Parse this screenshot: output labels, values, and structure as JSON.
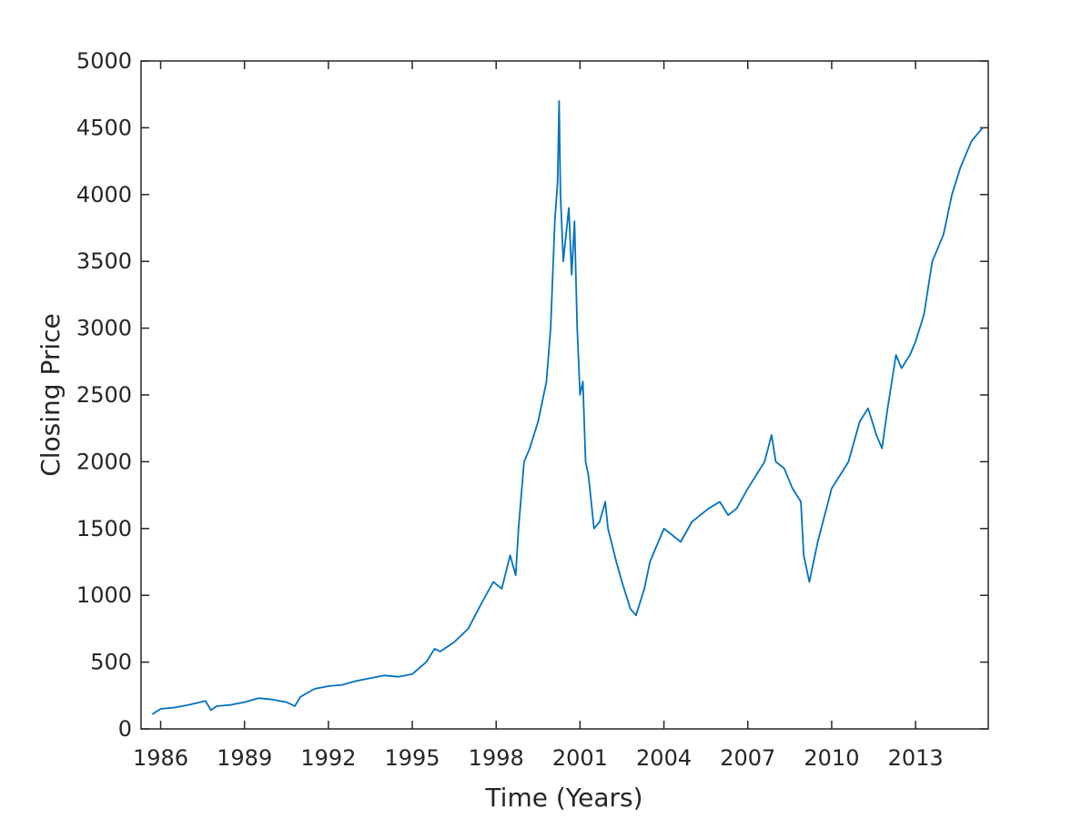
{
  "chart_data": {
    "type": "line",
    "title": "",
    "xlabel": "Time (Years)",
    "ylabel": "Closing Price",
    "xlim": [
      1985.3,
      2015.6
    ],
    "ylim": [
      0,
      5000
    ],
    "x_ticks": [
      1986,
      1989,
      1992,
      1995,
      1998,
      2001,
      2004,
      2007,
      2010,
      2013
    ],
    "y_ticks": [
      0,
      500,
      1000,
      1500,
      2000,
      2500,
      3000,
      3500,
      4000,
      4500,
      5000
    ],
    "grid": false,
    "line_color": "#0072BD",
    "series": [
      {
        "x": [
          1985.7,
          1986.0,
          1986.5,
          1987.0,
          1987.6,
          1987.8,
          1988.0,
          1988.5,
          1989.0,
          1989.5,
          1990.0,
          1990.5,
          1990.8,
          1991.0,
          1991.5,
          1992.0,
          1992.5,
          1993.0,
          1993.5,
          1994.0,
          1994.5,
          1995.0,
          1995.5,
          1995.8,
          1996.0,
          1996.5,
          1997.0,
          1997.5,
          1997.9,
          1998.2,
          1998.5,
          1998.7,
          1998.8,
          1999.0,
          1999.2,
          1999.5,
          1999.8,
          1999.95,
          2000.1,
          2000.2,
          2000.25,
          2000.3,
          2000.4,
          2000.5,
          2000.6,
          2000.7,
          2000.8,
          2000.9,
          2001.0,
          2001.1,
          2001.2,
          2001.3,
          2001.5,
          2001.7,
          2001.9,
          2002.0,
          2002.3,
          2002.5,
          2002.8,
          2003.0,
          2003.3,
          2003.5,
          2003.8,
          2004.0,
          2004.3,
          2004.6,
          2005.0,
          2005.3,
          2005.6,
          2006.0,
          2006.3,
          2006.6,
          2007.0,
          2007.3,
          2007.6,
          2007.85,
          2008.0,
          2008.3,
          2008.6,
          2008.9,
          2009.0,
          2009.2,
          2009.5,
          2010.0,
          2010.3,
          2010.6,
          2011.0,
          2011.3,
          2011.6,
          2011.8,
          2012.0,
          2012.3,
          2012.5,
          2012.8,
          2013.0,
          2013.3,
          2013.6,
          2014.0,
          2014.3,
          2014.6,
          2014.8,
          2015.0,
          2015.2,
          2015.4
        ],
        "y": [
          110,
          150,
          160,
          180,
          210,
          140,
          170,
          180,
          200,
          230,
          220,
          200,
          170,
          240,
          300,
          320,
          330,
          360,
          380,
          400,
          390,
          410,
          500,
          600,
          580,
          650,
          750,
          950,
          1100,
          1050,
          1300,
          1150,
          1500,
          2000,
          2100,
          2300,
          2600,
          3000,
          3800,
          4100,
          4700,
          4000,
          3500,
          3700,
          3900,
          3400,
          3800,
          3000,
          2500,
          2600,
          2000,
          1900,
          1500,
          1550,
          1700,
          1500,
          1250,
          1100,
          900,
          850,
          1050,
          1250,
          1400,
          1500,
          1450,
          1400,
          1550,
          1600,
          1650,
          1700,
          1600,
          1650,
          1800,
          1900,
          2000,
          2200,
          2000,
          1950,
          1800,
          1700,
          1300,
          1100,
          1400,
          1800,
          1900,
          2000,
          2300,
          2400,
          2200,
          2100,
          2400,
          2800,
          2700,
          2800,
          2900,
          3100,
          3500,
          3700,
          4000,
          4200,
          4300,
          4400,
          4450,
          4500
        ]
      }
    ]
  }
}
